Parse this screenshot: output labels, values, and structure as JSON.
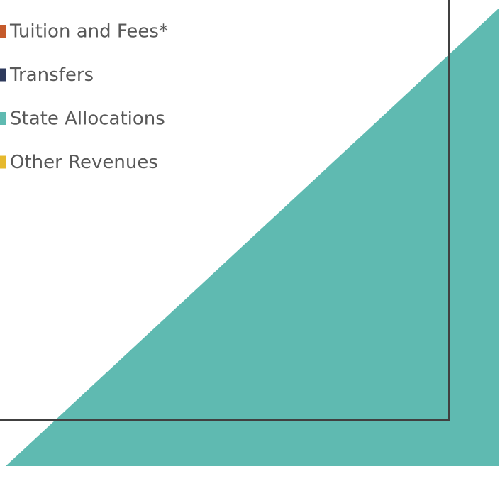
{
  "legend": [
    {
      "label": "Tuition and Fees*",
      "color": "#c55a2b"
    },
    {
      "label": "Transfers",
      "color": "#2e3a5c"
    },
    {
      "label": "State Allocations",
      "color": "#5fbab1"
    },
    {
      "label": "Other Revenues",
      "color": "#e6b92e"
    }
  ]
}
